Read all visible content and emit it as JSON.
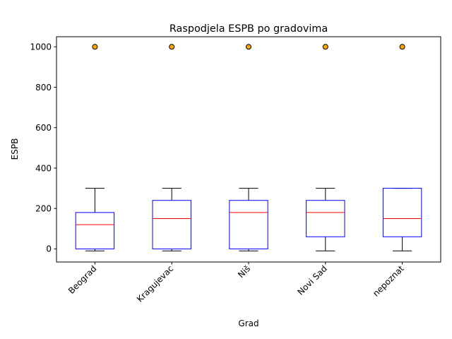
{
  "chart_data": {
    "type": "box",
    "title": "Raspodjela ESPB po gradovima",
    "xlabel": "Grad",
    "ylabel": "ESPB",
    "ylim": [
      -65,
      1050
    ],
    "yticks": [
      0,
      200,
      400,
      600,
      800,
      1000
    ],
    "grid": false,
    "categories": [
      "Beograd",
      "Kragujevac",
      "Niš",
      "Novi Sad",
      "nepoznat"
    ],
    "boxes": [
      {
        "whisker_low": -10,
        "q1": 0,
        "median": 120,
        "q3": 180,
        "whisker_high": 300,
        "outliers": [
          1000
        ]
      },
      {
        "whisker_low": -10,
        "q1": 0,
        "median": 150,
        "q3": 240,
        "whisker_high": 300,
        "outliers": [
          1000
        ]
      },
      {
        "whisker_low": -10,
        "q1": 0,
        "median": 180,
        "q3": 240,
        "whisker_high": 300,
        "outliers": [
          1000
        ]
      },
      {
        "whisker_low": -10,
        "q1": 60,
        "median": 180,
        "q3": 240,
        "whisker_high": 300,
        "outliers": [
          1000
        ]
      },
      {
        "whisker_low": -10,
        "q1": 60,
        "median": 150,
        "q3": 300,
        "whisker_high": 300,
        "outliers": [
          1000
        ]
      }
    ],
    "colors": {
      "box": "#0000ff",
      "median": "#ff0000",
      "whisker": "#000000",
      "outlier_fill": "#ffa500",
      "outlier_edge": "#000000"
    }
  }
}
